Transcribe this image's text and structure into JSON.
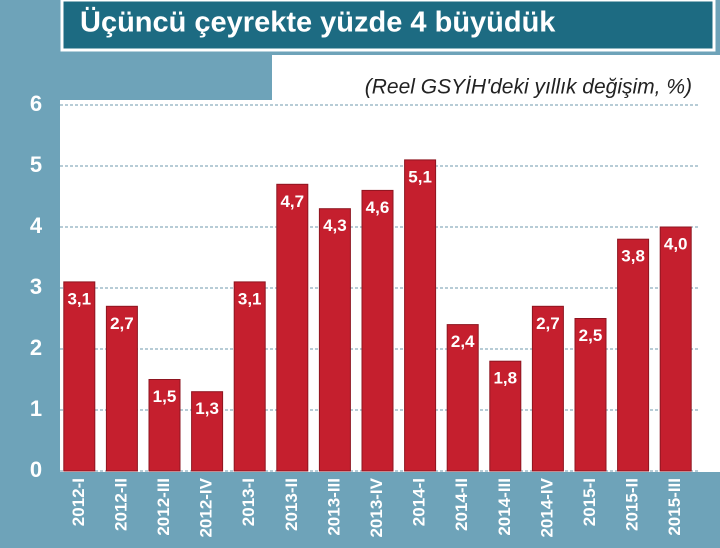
{
  "chart_data": {
    "type": "bar",
    "title": "Üçüncü çeyrekte yüzde 4 büyüdük",
    "subtitle": "(Reel GSYİH'deki yıllık değişim, %)",
    "categories": [
      "2012-I",
      "2012-II",
      "2012-III",
      "2012-IV",
      "2013-I",
      "2013-II",
      "2013-III",
      "2013-IV",
      "2014-I",
      "2014-II",
      "2014-III",
      "2014-IV",
      "2015-I",
      "2015-II",
      "2015-III"
    ],
    "values": [
      3.1,
      2.7,
      1.5,
      1.3,
      3.1,
      4.7,
      4.3,
      4.6,
      5.1,
      2.4,
      1.8,
      2.7,
      2.5,
      3.8,
      4.0
    ],
    "value_labels": [
      "3,1",
      "2,7",
      "1,5",
      "1,3",
      "3,1",
      "4,7",
      "4,3",
      "4,6",
      "5,1",
      "2,4",
      "1,8",
      "2,7",
      "2,5",
      "3,8",
      "4,0"
    ],
    "color": "#c51f2e",
    "ylim": [
      0,
      6
    ],
    "yticks": [
      0,
      1,
      2,
      3,
      4,
      5,
      6
    ],
    "grid": true
  }
}
